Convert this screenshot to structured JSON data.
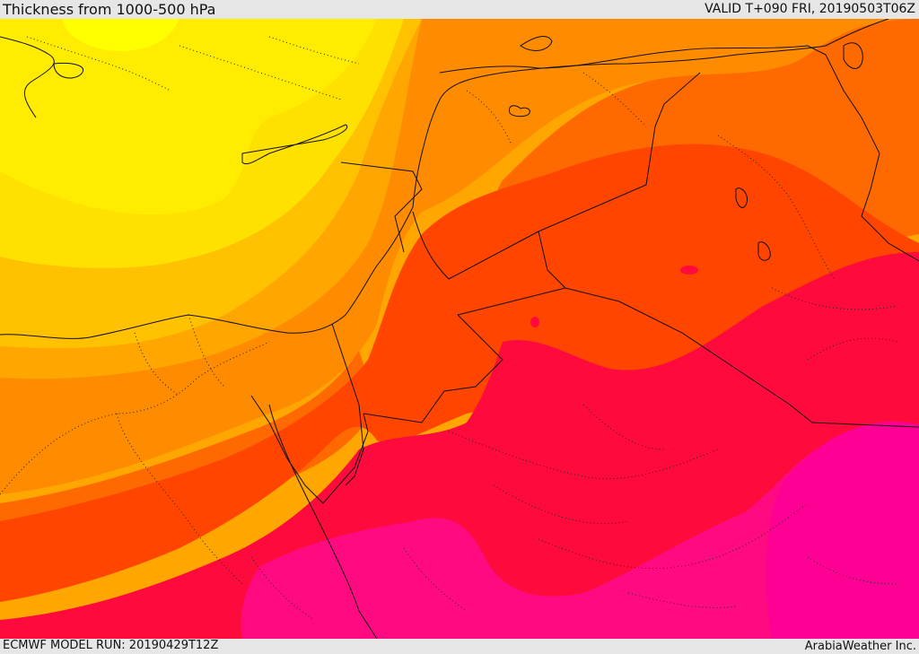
{
  "header": {
    "title": "Thickness from 1000-500 hPa",
    "valid": "VALID T+090 FRI, 20190503T06Z"
  },
  "footer": {
    "model_run": "ECMWF MODEL RUN: 20190429T12Z",
    "credit": "ArabiaWeather Inc."
  },
  "map": {
    "field": "1000-500 hPa thickness",
    "band_colors": [
      "#ffff00",
      "#ffe100",
      "#ffc100",
      "#ffa600",
      "#ff8c00",
      "#ff6a00",
      "#ff4500",
      "#ff1a3c",
      "#ff0066",
      "#ff0a90"
    ]
  }
}
